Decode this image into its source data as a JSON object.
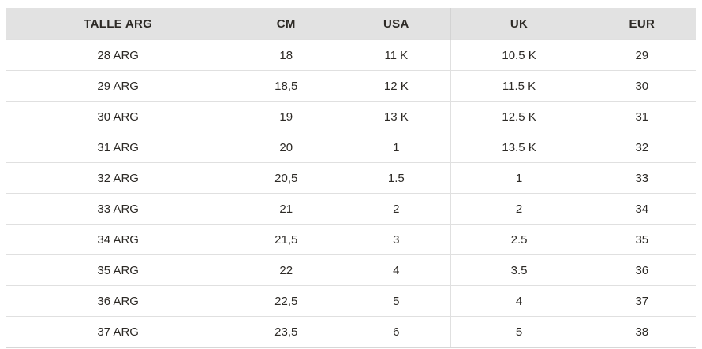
{
  "colors": {
    "header_bg": "#e2e2e2",
    "border": "#e0e0e0",
    "outer_border": "#dedede",
    "text": "#2d2a26"
  },
  "table": {
    "columns": [
      {
        "key": "talle-arg",
        "label": "TALLE ARG",
        "width": "32.5%"
      },
      {
        "key": "cm",
        "label": "CM",
        "width": "16.2%"
      },
      {
        "key": "usa",
        "label": "USA",
        "width": "15.7%"
      },
      {
        "key": "uk",
        "label": "UK",
        "width": "19.9%"
      },
      {
        "key": "eur",
        "label": "EUR",
        "width": "15.7%"
      }
    ],
    "rows": [
      [
        "28 ARG",
        "18",
        "11 K",
        "10.5 K",
        "29"
      ],
      [
        "29 ARG",
        "18,5",
        "12 K",
        "11.5 K",
        "30"
      ],
      [
        "30 ARG",
        "19",
        "13 K",
        "12.5 K",
        "31"
      ],
      [
        "31 ARG",
        "20",
        "1",
        "13.5 K",
        "32"
      ],
      [
        "32 ARG",
        "20,5",
        "1.5",
        "1",
        "33"
      ],
      [
        "33 ARG",
        "21",
        "2",
        "2",
        "34"
      ],
      [
        "34 ARG",
        "21,5",
        "3",
        "2.5",
        "35"
      ],
      [
        "35 ARG",
        "22",
        "4",
        "3.5",
        "36"
      ],
      [
        "36 ARG",
        "22,5",
        "5",
        "4",
        "37"
      ],
      [
        "37 ARG",
        "23,5",
        "6",
        "5",
        "38"
      ]
    ]
  }
}
